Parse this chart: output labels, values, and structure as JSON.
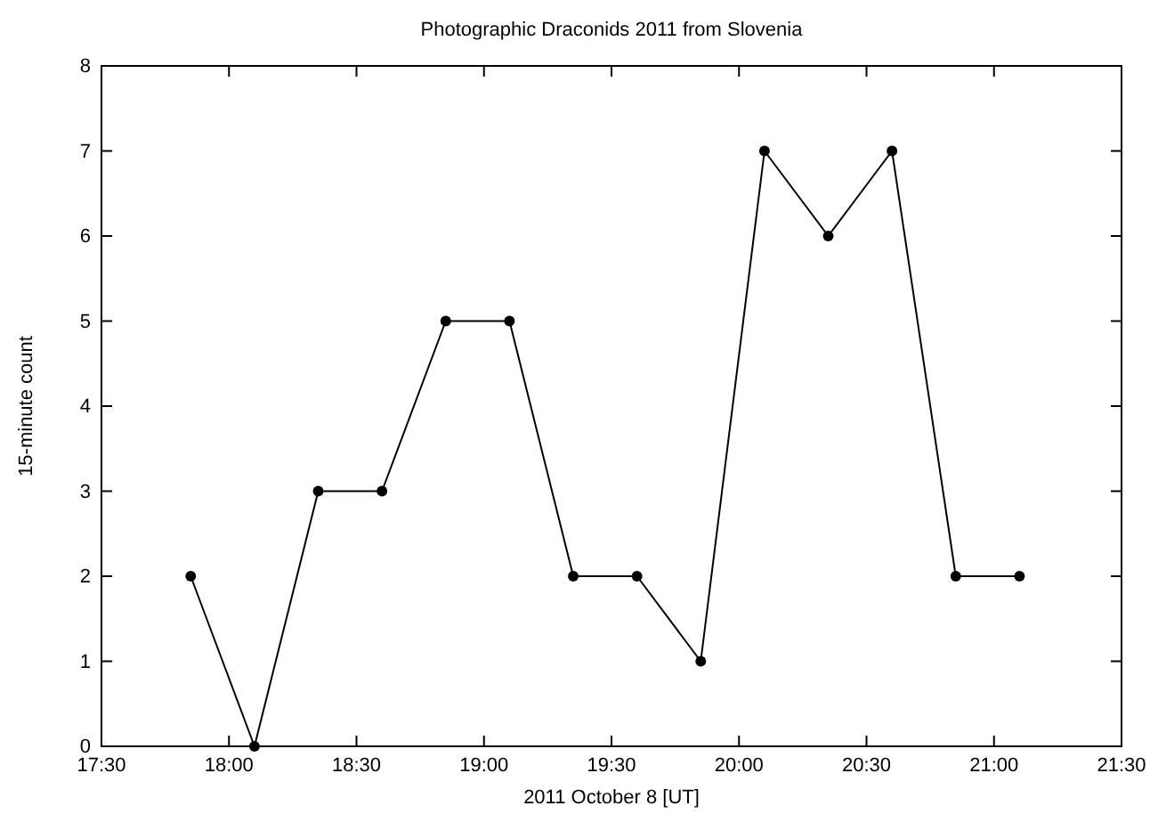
{
  "chart_data": {
    "type": "line",
    "title": "Photographic Draconids 2011 from Slovenia",
    "xlabel": "2011 October 8 [UT]",
    "ylabel": "15-minute count",
    "x": [
      17.85,
      18.1,
      18.35,
      18.6,
      18.85,
      19.1,
      19.35,
      19.6,
      19.85,
      20.1,
      20.35,
      20.6,
      20.85,
      21.1
    ],
    "series": [
      {
        "color": "#000000",
        "values": [
          2,
          0,
          3,
          3,
          5,
          5,
          2,
          2,
          1,
          7,
          6,
          7,
          2,
          2
        ]
      }
    ],
    "xlim": [
      17.5,
      21.5
    ],
    "xticks": [
      {
        "value": 17.5,
        "label": "17:30"
      },
      {
        "value": 18,
        "label": "18:00"
      },
      {
        "value": 18.5,
        "label": "18:30"
      },
      {
        "value": 19,
        "label": "19:00"
      },
      {
        "value": 19.5,
        "label": "19:30"
      },
      {
        "value": 20,
        "label": "20:00"
      },
      {
        "value": 20.5,
        "label": "20:30"
      },
      {
        "value": 21,
        "label": "21:00"
      },
      {
        "value": 21.5,
        "label": "21:30"
      }
    ],
    "ylim": [
      0,
      8
    ],
    "yticks": [
      0,
      1,
      2,
      3,
      4,
      5,
      6,
      7,
      8
    ],
    "grid": false,
    "marker": "circle",
    "line_style": "solid"
  }
}
